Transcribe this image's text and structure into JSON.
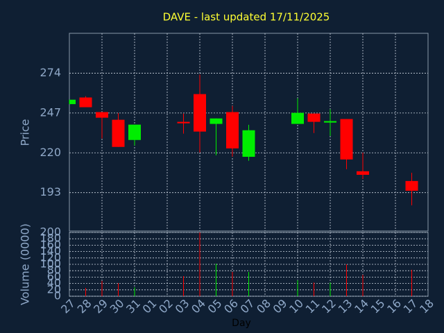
{
  "chart_data": {
    "type": "candlestick",
    "title": "DAVE - last updated 17/11/2025",
    "ylabel": "Price",
    "y2label": "Volume (0000)",
    "xlabel": "Day",
    "categories": [
      "27",
      "28",
      "29",
      "30",
      "31",
      "01",
      "02",
      "03",
      "04",
      "05",
      "06",
      "07",
      "08",
      "09",
      "10",
      "11",
      "12",
      "13",
      "14",
      "15",
      "16",
      "17",
      "18"
    ],
    "open": [
      253,
      257.5,
      247.6,
      242.4,
      228.7,
      null,
      null,
      241,
      259.8,
      239.6,
      247.6,
      217.3,
      null,
      null,
      239.6,
      246.6,
      240.5,
      242.9,
      207.5,
      null,
      null,
      200.9,
      null
    ],
    "high": [
      256,
      258.4,
      247.6,
      247,
      239.1,
      null,
      null,
      246.6,
      273,
      243.3,
      251.8,
      239,
      null,
      null,
      257,
      246.6,
      249.5,
      242.9,
      220.2,
      null,
      null,
      206.5,
      null
    ],
    "low": [
      253,
      250.9,
      229.7,
      224,
      225,
      null,
      null,
      233,
      220.2,
      218.3,
      217.4,
      214.6,
      null,
      null,
      239.6,
      233.4,
      231.5,
      208.9,
      202.3,
      null,
      null,
      184.4,
      null
    ],
    "close": [
      256,
      250.9,
      243.8,
      224,
      239.1,
      null,
      null,
      240,
      234.4,
      243.3,
      223,
      235.3,
      null,
      null,
      247.1,
      241,
      241.5,
      215.5,
      205.1,
      null,
      null,
      194.3,
      null
    ],
    "volume": [
      0,
      26,
      48,
      41,
      28,
      null,
      null,
      63,
      200,
      102,
      76,
      76,
      null,
      null,
      50,
      43,
      43,
      100,
      67,
      null,
      null,
      83,
      null
    ],
    "up_color": "#00ee00",
    "down_color": "#ff0000",
    "ylim": [
      167,
      301
    ],
    "yticks": [
      193,
      220,
      247,
      274
    ],
    "y2lim": [
      0,
      200
    ],
    "y2ticks": [
      0,
      20,
      40,
      60,
      80,
      100,
      120,
      140,
      160,
      180,
      200
    ],
    "grid": true
  }
}
